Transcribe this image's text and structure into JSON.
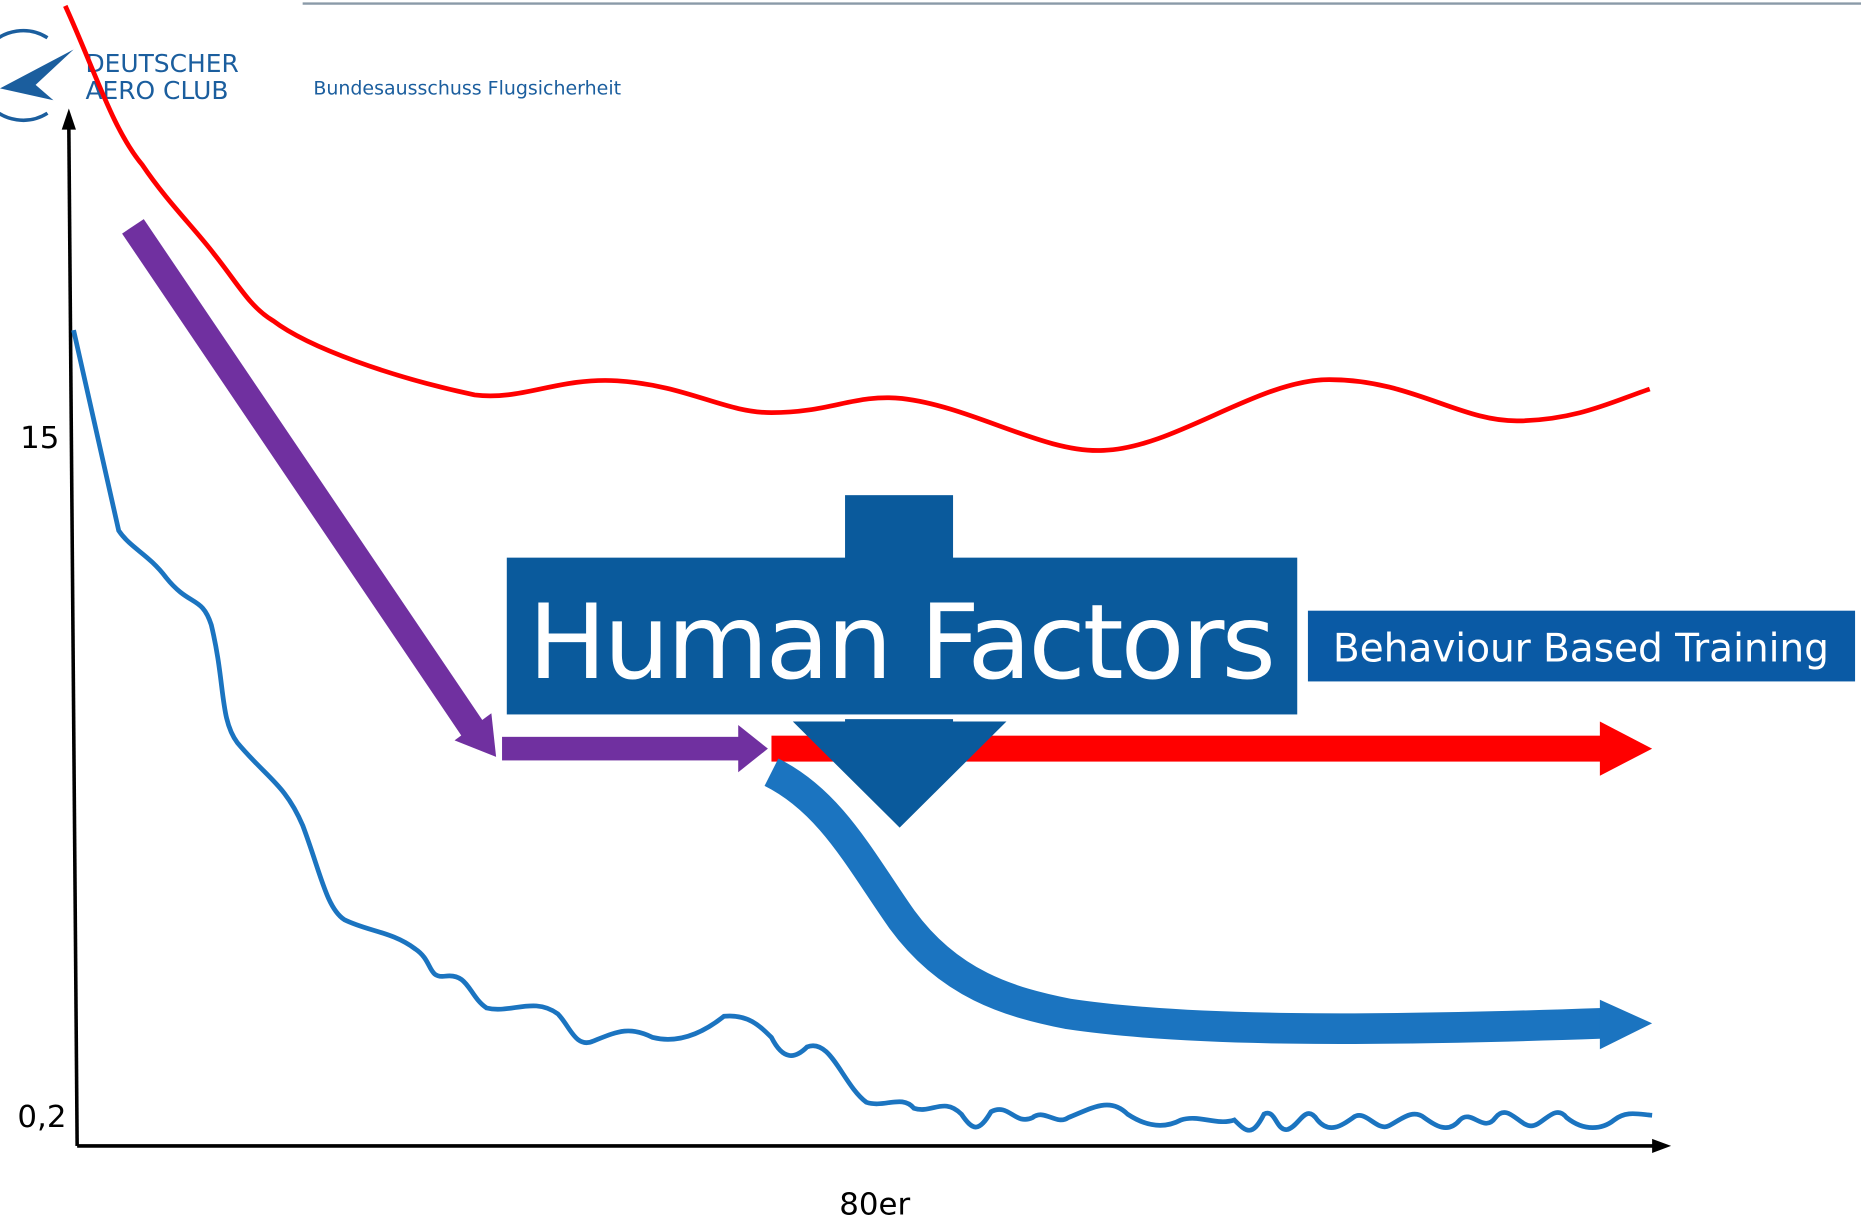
{
  "logo": {
    "line1": "DEUTSCHER",
    "line2": "AERO CLUB",
    "subtitle": "Bundesausschuss Flugsicherheit"
  },
  "axis": {
    "y_top_label": "15",
    "y_bottom_label": "0,2",
    "x_label": "80er"
  },
  "callout": {
    "title": "Human Factors",
    "tag": "Behaviour Based Training"
  }
}
